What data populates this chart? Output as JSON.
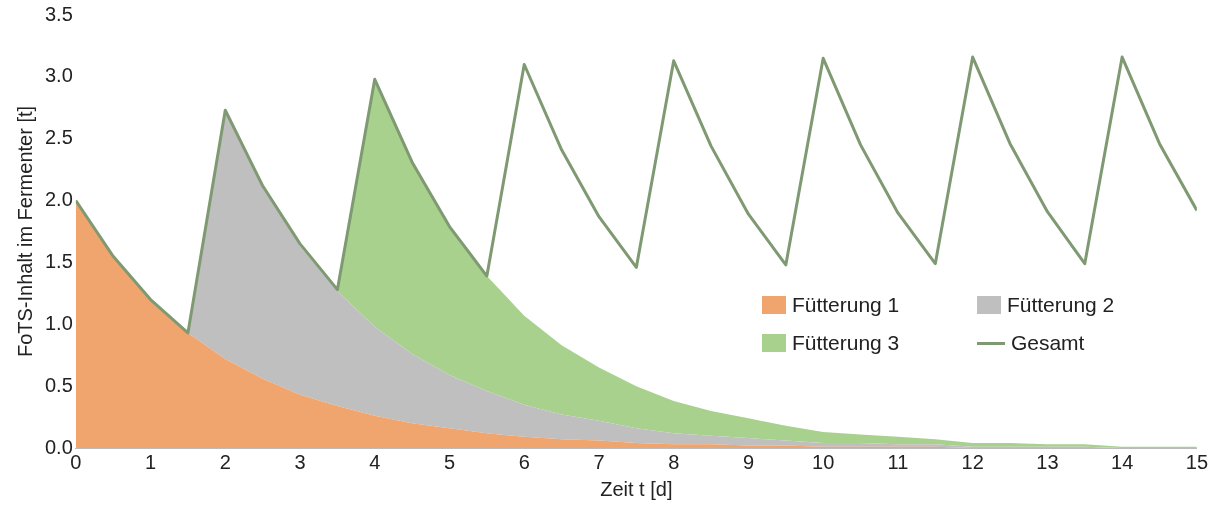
{
  "chart_data": {
    "type": "area",
    "stacked": true,
    "xlabel": "Zeit t [d]",
    "ylabel": "FoTS-Inhalt im Fermenter [t]",
    "x": [
      0,
      0.5,
      1,
      1.5,
      2,
      2.5,
      3,
      3.5,
      4,
      4.5,
      5,
      5.5,
      6,
      6.5,
      7,
      7.5,
      8,
      8.5,
      9,
      9.5,
      10,
      10.5,
      11,
      11.5,
      12,
      12.5,
      13,
      13.5,
      14,
      14.5,
      15
    ],
    "series": [
      {
        "name": "Fütterung 1",
        "color": "#f0a46e",
        "values": [
          2.0,
          1.55,
          1.2,
          0.93,
          0.72,
          0.56,
          0.43,
          0.34,
          0.26,
          0.2,
          0.16,
          0.12,
          0.09,
          0.07,
          0.06,
          0.04,
          0.03,
          0.03,
          0.02,
          0.02,
          0.01,
          0.01,
          0.01,
          0.01,
          0,
          0,
          0,
          0,
          0,
          0,
          0
        ]
      },
      {
        "name": "Fütterung 2",
        "color": "#bfbfbf",
        "values": [
          0,
          0,
          0,
          0,
          2.0,
          1.55,
          1.2,
          0.93,
          0.72,
          0.56,
          0.43,
          0.34,
          0.26,
          0.2,
          0.16,
          0.12,
          0.09,
          0.07,
          0.06,
          0.04,
          0.03,
          0.03,
          0.02,
          0.02,
          0.01,
          0.01,
          0.01,
          0.01,
          0,
          0,
          0
        ]
      },
      {
        "name": "Fütterung 3",
        "color": "#a9d18e",
        "values": [
          0,
          0,
          0,
          0,
          0,
          0,
          0,
          0,
          2.0,
          1.55,
          1.2,
          0.93,
          0.72,
          0.56,
          0.43,
          0.34,
          0.26,
          0.2,
          0.16,
          0.12,
          0.09,
          0.07,
          0.06,
          0.04,
          0.03,
          0.03,
          0.02,
          0.02,
          0.01,
          0.01,
          0.01
        ]
      },
      {
        "name": "Gesamt",
        "type": "line",
        "color": "#7f9a72",
        "values": [
          2.0,
          1.55,
          1.2,
          0.93,
          2.73,
          2.12,
          1.65,
          1.28,
          2.98,
          2.31,
          1.79,
          1.39,
          3.1,
          2.41,
          1.87,
          1.46,
          3.13,
          2.44,
          1.89,
          1.48,
          3.15,
          2.45,
          1.9,
          1.49,
          3.16,
          2.46,
          1.91,
          1.49,
          3.16,
          2.46,
          1.92
        ]
      }
    ],
    "xlim": [
      0,
      15
    ],
    "xticks": [
      0,
      1,
      2,
      3,
      4,
      5,
      6,
      7,
      8,
      9,
      10,
      11,
      12,
      13,
      14,
      15
    ],
    "ylim": [
      0,
      3.5
    ],
    "yticks": [
      {
        "value": 0,
        "label": "0.0"
      },
      {
        "value": 0.5,
        "label": "0.5"
      },
      {
        "value": 1,
        "label": "1.0"
      },
      {
        "value": 1.5,
        "label": "1.5"
      },
      {
        "value": 2,
        "label": "2.0"
      },
      {
        "value": 2.5,
        "label": "2.5"
      },
      {
        "value": 3,
        "label": "3.0"
      },
      {
        "value": 3.5,
        "label": "3.5"
      }
    ],
    "grid": false,
    "legend": "right",
    "marker": "none",
    "line_style": "solid"
  }
}
